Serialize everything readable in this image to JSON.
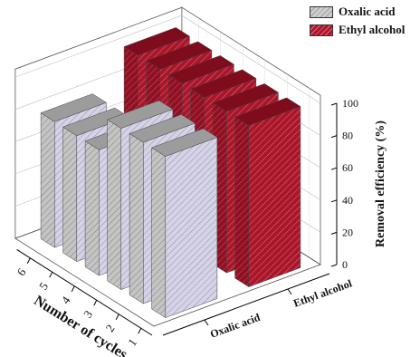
{
  "chart_data": {
    "type": "bar",
    "subtype": "3d-bar",
    "categories": [
      "1",
      "2",
      "3",
      "4",
      "5",
      "6"
    ],
    "series": [
      {
        "name": "Oxalic acid",
        "values": [
          100,
          100,
          100,
          78,
          78,
          78
        ]
      },
      {
        "name": "Ethyl alcohol",
        "values": [
          100,
          100,
          100,
          100,
          100,
          100
        ]
      }
    ],
    "series_axis_labels": [
      "Oxalic acid",
      "Ethyl alcohol"
    ],
    "xlabel": "Number of cycles",
    "zlabel": "Removal efficiency (%)",
    "zlim": [
      0,
      100
    ],
    "zticks": [
      "0",
      "20",
      "40",
      "60",
      "80",
      "100"
    ],
    "legend_position": "top-right",
    "colors": {
      "Oxalic acid": "#d3d0e6",
      "Ethyl alcohol": "#b01e32"
    }
  }
}
